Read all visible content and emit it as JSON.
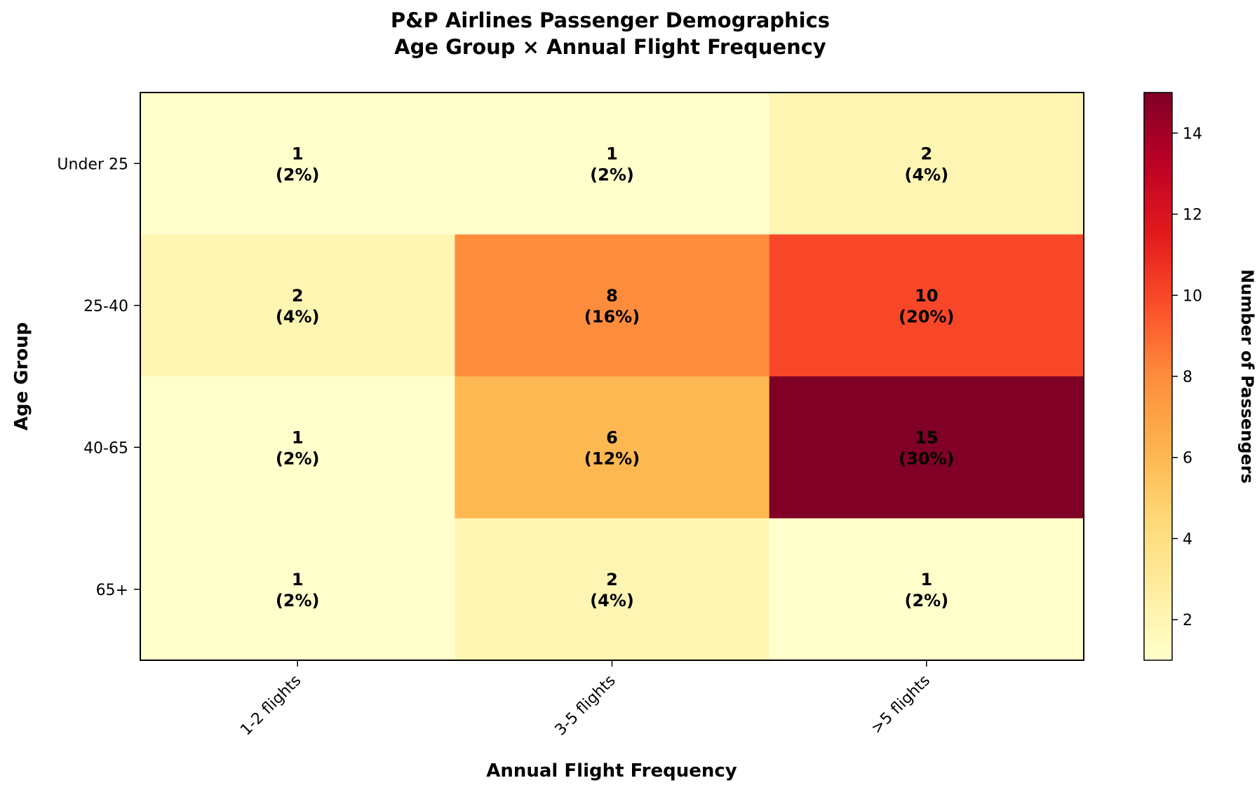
{
  "chart_data": {
    "type": "heatmap",
    "title_line1": "P&P Airlines Passenger Demographics",
    "title_line2": "Age Group × Annual Flight Frequency",
    "xlabel": "Annual Flight Frequency",
    "ylabel": "Age Group",
    "x_categories": [
      "1-2 flights",
      "3-5 flights",
      ">5 flights"
    ],
    "y_categories": [
      "Under 25",
      "25-40",
      "40-65",
      "65+"
    ],
    "values": [
      [
        1,
        1,
        2
      ],
      [
        2,
        8,
        10
      ],
      [
        1,
        6,
        15
      ],
      [
        1,
        2,
        1
      ]
    ],
    "percent_labels": [
      [
        "(2%)",
        "(2%)",
        "(4%)"
      ],
      [
        "(4%)",
        "(16%)",
        "(20%)"
      ],
      [
        "(2%)",
        "(12%)",
        "(30%)"
      ],
      [
        "(2%)",
        "(4%)",
        "(2%)"
      ]
    ],
    "colorbar": {
      "label": "Number of Passengers",
      "min": 1,
      "max": 15,
      "ticks": [
        2,
        4,
        6,
        8,
        10,
        12,
        14
      ],
      "colormap": "YlOrRd"
    }
  }
}
